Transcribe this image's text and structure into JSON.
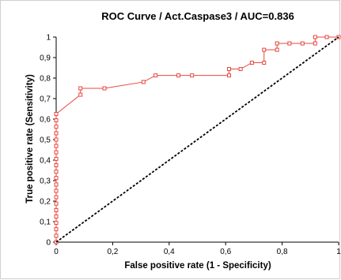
{
  "chart_data": {
    "type": "line",
    "title": "ROC Curve / Act.Caspase3 / AUC=0.836",
    "xlabel": "False positive rate (1 - Specificity)",
    "ylabel": "True positive rate (Sensitivity)",
    "xlim": [
      0,
      1
    ],
    "ylim": [
      0,
      1
    ],
    "x_ticks": [
      "0",
      "0,2",
      "0,4",
      "0,6",
      "0,8",
      "1"
    ],
    "y_ticks": [
      "0",
      "0,1",
      "0,2",
      "0,3",
      "0,4",
      "0,5",
      "0,6",
      "0,7",
      "0,8",
      "0,9",
      "1"
    ],
    "grid": false,
    "legend": "none",
    "series": [
      {
        "color": "#e8473f",
        "marker": "square",
        "x": [
          0,
          0,
          0,
          0,
          0,
          0,
          0,
          0,
          0,
          0,
          0,
          0,
          0,
          0,
          0,
          0,
          0,
          0,
          0,
          0,
          0,
          0.086,
          0.086,
          0.171,
          0.309,
          0.352,
          0.433,
          0.481,
          0.612,
          0.612,
          0.653,
          0.693,
          0.736,
          0.736,
          0.782,
          0.782,
          0.826,
          0.872,
          0.917,
          0.917,
          0.958,
          1
        ],
        "y": [
          0,
          0.031,
          0.063,
          0.094,
          0.125,
          0.156,
          0.188,
          0.219,
          0.25,
          0.281,
          0.313,
          0.344,
          0.375,
          0.406,
          0.438,
          0.469,
          0.5,
          0.531,
          0.563,
          0.594,
          0.625,
          0.719,
          0.75,
          0.75,
          0.781,
          0.813,
          0.813,
          0.813,
          0.813,
          0.844,
          0.844,
          0.875,
          0.875,
          0.938,
          0.938,
          0.969,
          0.969,
          0.969,
          0.969,
          1,
          1,
          1
        ]
      },
      {
        "color": "#000000",
        "style": "dashed",
        "x": [
          0,
          1
        ],
        "y": [
          0,
          1
        ]
      }
    ]
  }
}
